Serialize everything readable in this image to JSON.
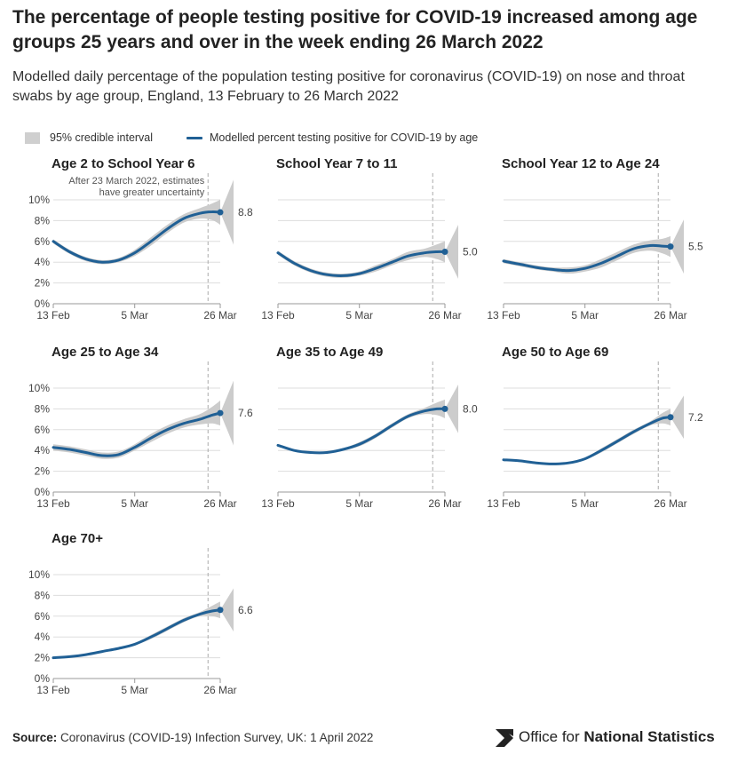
{
  "title": "The percentage of people testing positive for COVID-19 increased among age groups 25 years and over in the week ending 26 March 2022",
  "subtitle": "Modelled daily percentage of the population testing positive for coronavirus (COVID-19) on nose and throat swabs by age group, England, 13 February to 26 March 2022",
  "legend": {
    "band_label": "95% credible interval",
    "line_label": "Modelled percent testing positive for COVID-19 by age"
  },
  "annotation": {
    "line1": "After 23 March 2022, estimates",
    "line2": "have greater uncertainty"
  },
  "source": {
    "label": "Source:",
    "text": "Coronavirus (COVID-19) Infection Survey, UK: 1 April 2022"
  },
  "brand": {
    "prefix": "Office for ",
    "bold": "National Statistics"
  },
  "colors": {
    "line": "#206095",
    "band": "#cccccc",
    "grid": "#dddddd",
    "axis": "#999999",
    "dash": "#aaaaaa"
  },
  "chart_data": {
    "type": "line",
    "x_ticks": [
      "13 Feb",
      "5 Mar",
      "26 Mar"
    ],
    "y_ticks": [
      "0%",
      "2%",
      "4%",
      "6%",
      "8%",
      "10%"
    ],
    "ylim": [
      0,
      10
    ],
    "x_range": [
      "2022-02-13",
      "2022-03-26"
    ],
    "uncertainty_from": "2022-03-23",
    "panels": [
      {
        "title": "Age 2 to School Year 6",
        "end_label": "8.8",
        "x": [
          "2022-02-13",
          "2022-02-17",
          "2022-02-21",
          "2022-02-25",
          "2022-03-01",
          "2022-03-05",
          "2022-03-09",
          "2022-03-13",
          "2022-03-17",
          "2022-03-21",
          "2022-03-24",
          "2022-03-26"
        ],
        "y": [
          6.0,
          5.0,
          4.3,
          4.0,
          4.2,
          4.9,
          6.0,
          7.2,
          8.2,
          8.7,
          8.85,
          8.8
        ],
        "band": [
          0.2,
          0.2,
          0.2,
          0.2,
          0.2,
          0.3,
          0.4,
          0.4,
          0.4,
          0.5,
          0.8,
          1.2
        ]
      },
      {
        "title": "School Year 7 to 11",
        "end_label": "5.0",
        "x": [
          "2022-02-13",
          "2022-02-17",
          "2022-02-21",
          "2022-02-25",
          "2022-03-01",
          "2022-03-05",
          "2022-03-09",
          "2022-03-13",
          "2022-03-17",
          "2022-03-21",
          "2022-03-24",
          "2022-03-26"
        ],
        "y": [
          4.9,
          3.9,
          3.2,
          2.8,
          2.7,
          2.9,
          3.4,
          4.0,
          4.6,
          4.9,
          5.0,
          5.0
        ],
        "band": [
          0.2,
          0.2,
          0.2,
          0.2,
          0.2,
          0.2,
          0.3,
          0.3,
          0.4,
          0.4,
          0.7,
          1.0
        ]
      },
      {
        "title": "School Year 12 to Age 24",
        "end_label": "5.5",
        "x": [
          "2022-02-13",
          "2022-02-17",
          "2022-02-21",
          "2022-02-25",
          "2022-03-01",
          "2022-03-05",
          "2022-03-09",
          "2022-03-13",
          "2022-03-17",
          "2022-03-21",
          "2022-03-24",
          "2022-03-26"
        ],
        "y": [
          4.1,
          3.8,
          3.5,
          3.3,
          3.2,
          3.4,
          3.9,
          4.6,
          5.3,
          5.6,
          5.55,
          5.5
        ],
        "band": [
          0.2,
          0.2,
          0.2,
          0.2,
          0.3,
          0.3,
          0.4,
          0.4,
          0.4,
          0.5,
          0.7,
          1.0
        ]
      },
      {
        "title": "Age 25 to Age 34",
        "end_label": "7.6",
        "x": [
          "2022-02-13",
          "2022-02-17",
          "2022-02-21",
          "2022-02-25",
          "2022-03-01",
          "2022-03-05",
          "2022-03-09",
          "2022-03-13",
          "2022-03-17",
          "2022-03-21",
          "2022-03-24",
          "2022-03-26"
        ],
        "y": [
          4.3,
          4.1,
          3.8,
          3.5,
          3.6,
          4.3,
          5.2,
          6.0,
          6.6,
          7.0,
          7.4,
          7.6
        ],
        "band": [
          0.3,
          0.3,
          0.3,
          0.3,
          0.3,
          0.3,
          0.4,
          0.4,
          0.4,
          0.5,
          0.8,
          1.2
        ]
      },
      {
        "title": "Age 35 to Age 49",
        "end_label": "8.0",
        "x": [
          "2022-02-13",
          "2022-02-17",
          "2022-02-21",
          "2022-02-25",
          "2022-03-01",
          "2022-03-05",
          "2022-03-09",
          "2022-03-13",
          "2022-03-17",
          "2022-03-21",
          "2022-03-24",
          "2022-03-26"
        ],
        "y": [
          4.5,
          4.0,
          3.8,
          3.8,
          4.1,
          4.6,
          5.4,
          6.4,
          7.3,
          7.8,
          8.0,
          8.0
        ],
        "band": [
          0.1,
          0.1,
          0.1,
          0.1,
          0.1,
          0.2,
          0.2,
          0.2,
          0.2,
          0.3,
          0.6,
          0.9
        ]
      },
      {
        "title": "Age 50 to Age 69",
        "end_label": "7.2",
        "x": [
          "2022-02-13",
          "2022-02-17",
          "2022-02-21",
          "2022-02-25",
          "2022-03-01",
          "2022-03-05",
          "2022-03-09",
          "2022-03-13",
          "2022-03-17",
          "2022-03-21",
          "2022-03-24",
          "2022-03-26"
        ],
        "y": [
          3.1,
          3.0,
          2.8,
          2.7,
          2.8,
          3.2,
          4.0,
          4.9,
          5.8,
          6.6,
          7.1,
          7.2
        ],
        "band": [
          0.1,
          0.1,
          0.1,
          0.1,
          0.1,
          0.1,
          0.2,
          0.2,
          0.2,
          0.2,
          0.5,
          0.8
        ]
      },
      {
        "title": "Age 70+",
        "end_label": "6.6",
        "x": [
          "2022-02-13",
          "2022-02-17",
          "2022-02-21",
          "2022-02-25",
          "2022-03-01",
          "2022-03-05",
          "2022-03-09",
          "2022-03-13",
          "2022-03-17",
          "2022-03-21",
          "2022-03-24",
          "2022-03-26"
        ],
        "y": [
          2.0,
          2.1,
          2.3,
          2.6,
          2.9,
          3.3,
          4.0,
          4.8,
          5.6,
          6.2,
          6.5,
          6.6
        ],
        "band": [
          0.1,
          0.1,
          0.1,
          0.1,
          0.1,
          0.1,
          0.2,
          0.2,
          0.2,
          0.2,
          0.5,
          0.8
        ]
      }
    ]
  }
}
